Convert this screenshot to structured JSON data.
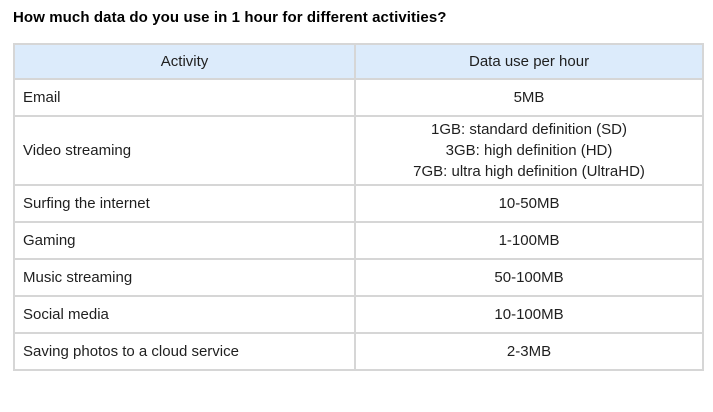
{
  "title": "How much data do you use in 1 hour for different activities?",
  "colors": {
    "header_background": "#dcebfb",
    "table_border": "#d6d6d6",
    "title_text": "#000000",
    "body_text": "#1f1f1f",
    "page_background": "#ffffff"
  },
  "table": {
    "headers": {
      "activity": "Activity",
      "data_use": "Data use per hour"
    },
    "rows": [
      {
        "activity": "Email",
        "value": "5MB"
      },
      {
        "activity": "Video streaming",
        "value_lines": [
          "1GB: standard definition (SD)",
          "3GB: high definition (HD)",
          "7GB: ultra high definition (UltraHD)"
        ]
      },
      {
        "activity": "Surfing the internet",
        "value": "10-50MB"
      },
      {
        "activity": "Gaming",
        "value": "1-100MB"
      },
      {
        "activity": "Music streaming",
        "value": "50-100MB"
      },
      {
        "activity": "Social media",
        "value": "10-100MB"
      },
      {
        "activity": "Saving photos to a cloud service",
        "value": "2-3MB"
      }
    ]
  }
}
